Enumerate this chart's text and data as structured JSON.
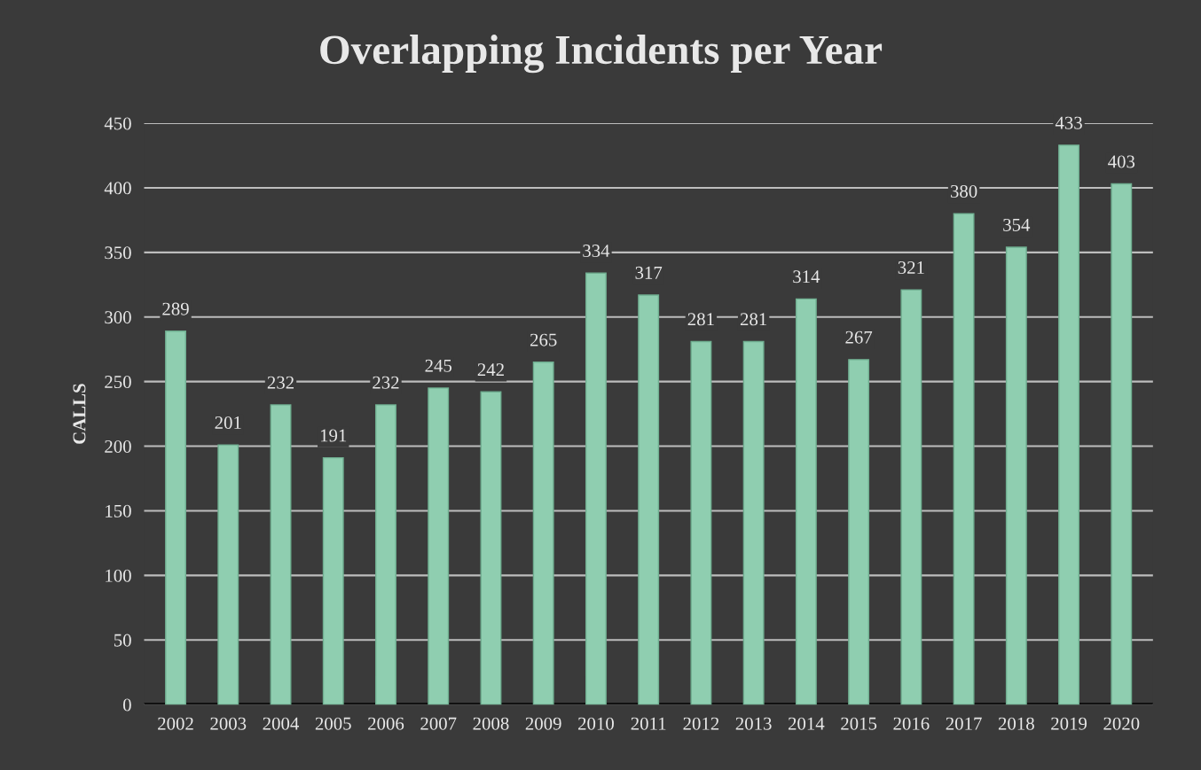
{
  "chart_data": {
    "type": "bar",
    "title": "Overlapping Incidents per Year",
    "ylabel": "CALLS",
    "categories": [
      "2002",
      "2003",
      "2004",
      "2005",
      "2006",
      "2007",
      "2008",
      "2009",
      "2010",
      "2011",
      "2012",
      "2013",
      "2014",
      "2015",
      "2016",
      "2017",
      "2018",
      "2019",
      "2020"
    ],
    "values": [
      289,
      201,
      232,
      191,
      232,
      245,
      242,
      265,
      334,
      317,
      281,
      281,
      314,
      267,
      321,
      380,
      354,
      433,
      403
    ],
    "color": "#8fceb0",
    "ylim": [
      0,
      450
    ],
    "yticks": [
      0,
      50,
      100,
      150,
      200,
      250,
      300,
      350,
      400,
      450
    ],
    "grid": "y",
    "data_labels": true,
    "legend": false
  }
}
